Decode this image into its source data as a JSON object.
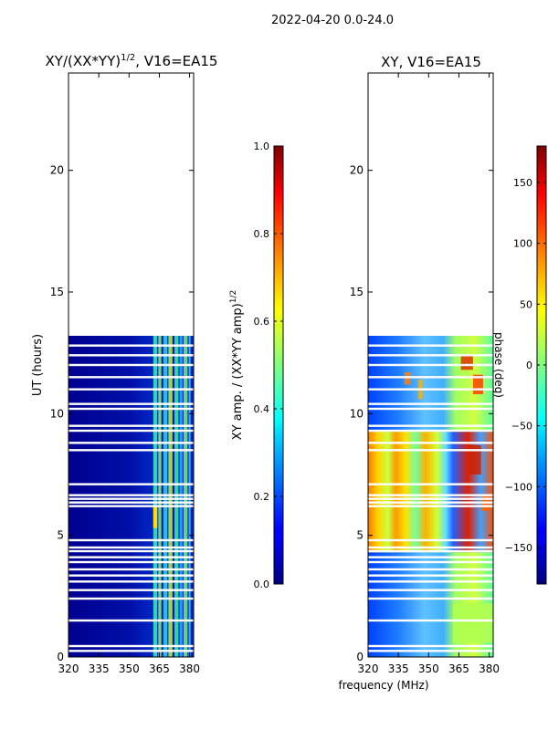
{
  "figure_title": "2022-04-20 0.0-24.0",
  "chart_data": [
    {
      "type": "heatmap",
      "title": "XY/(XX*YY)",
      "title_superscript": "1/2",
      "title_suffix": ", V16=EA15",
      "xlabel": "",
      "ylabel": "UT (hours)",
      "xlim": [
        320,
        382
      ],
      "ylim": [
        0,
        24
      ],
      "x_ticks": [
        320,
        335,
        350,
        365,
        380
      ],
      "y_ticks": [
        0,
        5,
        10,
        15,
        20
      ],
      "data_extent_hours": [
        0,
        13.2
      ],
      "gap_rows_hours": [
        0.25,
        0.45,
        1.5,
        2.4,
        2.75,
        3.1,
        3.35,
        3.6,
        3.9,
        4.1,
        4.35,
        4.5,
        4.8,
        6.2,
        6.35,
        6.5,
        6.65,
        7.1,
        8.5,
        8.8,
        9.3,
        9.5,
        10.2,
        10.4,
        11.0,
        11.5,
        12.0,
        12.4,
        12.8
      ],
      "colorbar": {
        "label": "XY amp. / (XX*YY amp)",
        "label_superscript": "1/2",
        "range": [
          0.0,
          1.0
        ],
        "ticks": [
          0.0,
          0.2,
          0.4,
          0.6,
          0.8,
          1.0
        ],
        "tick_labels": [
          "0.0",
          "0.2",
          "0.4",
          "0.6",
          "0.8",
          "1.0"
        ]
      }
    },
    {
      "type": "heatmap",
      "title": "XY, V16=EA15",
      "xlabel": "frequency (MHz)",
      "ylabel": "",
      "xlim": [
        320,
        382
      ],
      "ylim": [
        0,
        24
      ],
      "x_ticks": [
        320,
        335,
        350,
        365,
        380
      ],
      "y_ticks": [
        0,
        5,
        10,
        15,
        20
      ],
      "data_extent_hours": [
        0,
        13.2
      ],
      "gap_rows_hours": [
        0.25,
        0.45,
        1.5,
        2.4,
        2.75,
        3.1,
        3.35,
        3.6,
        3.9,
        4.1,
        4.35,
        4.5,
        4.8,
        6.2,
        6.35,
        6.5,
        6.65,
        7.1,
        8.5,
        8.8,
        9.3,
        9.5,
        10.2,
        10.4,
        11.0,
        11.5,
        12.0,
        12.4,
        12.8
      ],
      "colorbar": {
        "label": "phase (deg)",
        "range": [
          -180,
          180
        ],
        "ticks": [
          -150,
          -100,
          -50,
          0,
          50,
          100,
          150
        ],
        "tick_labels": [
          "−150",
          "−100",
          "−50",
          "0",
          "50",
          "100",
          "150"
        ]
      }
    }
  ]
}
